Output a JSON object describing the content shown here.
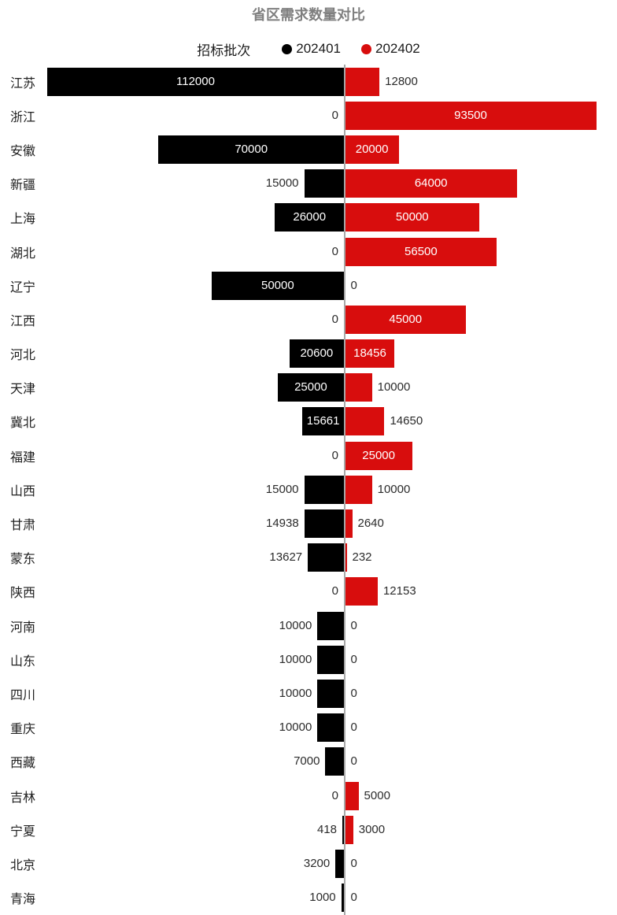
{
  "title": "省区需求数量对比",
  "legend": {
    "title": "招标批次",
    "items": [
      {
        "label": "202401",
        "color": "#000000"
      },
      {
        "label": "202402",
        "color": "#d80d0d"
      }
    ]
  },
  "colors": {
    "series_202401": "#000000",
    "series_202402": "#d80d0d",
    "axis_line": "#a8a8a8",
    "title_text": "#7f7f7f",
    "label_text": "#2b2b2b",
    "inside_label_text": "#ffffff"
  },
  "chart_data": {
    "type": "bar",
    "subtype": "tornado-horizontal",
    "title": "省区需求数量对比",
    "legend_title": "招标批次",
    "legend_position": "top-center",
    "grid": false,
    "categories": [
      "江苏",
      "浙江",
      "安徽",
      "新疆",
      "上海",
      "湖北",
      "辽宁",
      "江西",
      "河北",
      "天津",
      "冀北",
      "福建",
      "山西",
      "甘肃",
      "蒙东",
      "陕西",
      "河南",
      "山东",
      "四川",
      "重庆",
      "西藏",
      "吉林",
      "宁夏",
      "北京",
      "青海"
    ],
    "series": [
      {
        "name": "202401",
        "side": "left",
        "color": "#000000",
        "values": [
          112000,
          0,
          70000,
          15000,
          26000,
          0,
          50000,
          0,
          20600,
          25000,
          15661,
          0,
          15000,
          14938,
          13627,
          0,
          10000,
          10000,
          10000,
          10000,
          7000,
          0,
          418,
          3200,
          1000
        ]
      },
      {
        "name": "202402",
        "side": "right",
        "color": "#d80d0d",
        "values": [
          12800,
          93500,
          20000,
          64000,
          50000,
          56500,
          0,
          45000,
          18456,
          10000,
          14650,
          25000,
          10000,
          2640,
          232,
          12153,
          0,
          0,
          0,
          0,
          0,
          5000,
          3000,
          0,
          0
        ]
      }
    ],
    "left_max": 112000,
    "right_max": 93500
  }
}
